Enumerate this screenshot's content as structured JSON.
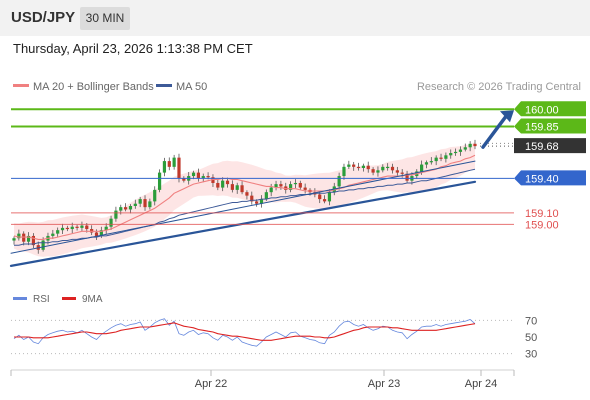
{
  "header": {
    "pair": "USD/JPY",
    "timeframe": "30 MIN"
  },
  "datetime": "Thursday, April 23, 2026 1:13:38 PM CET",
  "legend": {
    "ma20_label": "MA 20 + Bollinger Bands",
    "ma50_label": "MA 50",
    "credit": "Research © 2026 Trading Central",
    "rsi_label": "RSI",
    "ma9_label": "9MA"
  },
  "colors": {
    "ma20": "#f08080",
    "ma50": "#3d5a98",
    "bollinger_fill": "#fde0e0",
    "resistance": "#5cb818",
    "pivot": "#3366cc",
    "support": "#e05050",
    "current": "#333333",
    "candle_up": "#2a9d3a",
    "candle_down": "#c0392b",
    "arrow": "#2a5598",
    "rsi": "#6688dd",
    "rsi_ma": "#dd2222"
  },
  "chart_data": [
    {
      "type": "line",
      "chart": "price",
      "x_ticks": [
        "Apr 22",
        "Apr 23",
        "Apr 24"
      ],
      "ylim": [
        158.5,
        160.15
      ],
      "levels": [
        {
          "value": 160.0,
          "label": "160.00",
          "kind": "resistance"
        },
        {
          "value": 159.85,
          "label": "159.85",
          "kind": "resistance"
        },
        {
          "value": 159.68,
          "label": "159.68",
          "kind": "current"
        },
        {
          "value": 159.4,
          "label": "159.40",
          "kind": "pivot"
        },
        {
          "value": 159.1,
          "label": "159.10",
          "kind": "support"
        },
        {
          "value": 159.0,
          "label": "159.00",
          "kind": "support"
        }
      ],
      "trendlines": [
        {
          "name": "lower",
          "from": [
            0,
            158.64
          ],
          "to": [
            95,
            159.37
          ]
        },
        {
          "name": "upper-channel",
          "from": [
            0,
            158.75
          ],
          "to": [
            95,
            159.55
          ]
        }
      ],
      "close": [
        158.88,
        158.92,
        158.85,
        158.9,
        158.82,
        158.78,
        158.86,
        158.9,
        158.92,
        158.95,
        158.97,
        158.96,
        158.98,
        158.97,
        158.99,
        158.96,
        158.93,
        158.9,
        158.95,
        158.98,
        159.05,
        159.12,
        159.15,
        159.13,
        159.16,
        159.18,
        159.22,
        159.15,
        159.2,
        159.3,
        159.45,
        159.55,
        159.5,
        159.58,
        159.4,
        159.38,
        159.42,
        159.45,
        159.4,
        159.42,
        159.41,
        159.36,
        159.32,
        159.38,
        159.35,
        159.3,
        159.34,
        159.28,
        159.25,
        159.2,
        159.18,
        159.22,
        159.28,
        159.32,
        159.35,
        159.33,
        159.3,
        159.35,
        159.36,
        159.32,
        159.3,
        159.28,
        159.26,
        159.22,
        159.2,
        159.28,
        159.33,
        159.42,
        159.5,
        159.52,
        159.5,
        159.49,
        159.51,
        159.48,
        159.45,
        159.47,
        159.5,
        159.5,
        159.47,
        159.45,
        159.44,
        159.38,
        159.42,
        159.46,
        159.52,
        159.54,
        159.55,
        159.58,
        159.57,
        159.6,
        159.62,
        159.63,
        159.65,
        159.67,
        159.7,
        159.68
      ],
      "ma20": [
        158.9,
        158.89,
        158.89,
        158.89,
        158.88,
        158.87,
        158.87,
        158.88,
        158.88,
        158.89,
        158.9,
        158.91,
        158.92,
        158.93,
        158.94,
        158.94,
        158.94,
        158.94,
        158.94,
        158.95,
        158.96,
        158.98,
        159.0,
        159.02,
        159.04,
        159.06,
        159.08,
        159.1,
        159.12,
        159.14,
        159.17,
        159.2,
        159.23,
        159.27,
        159.29,
        159.31,
        159.33,
        159.35,
        159.36,
        159.37,
        159.38,
        159.39,
        159.39,
        159.4,
        159.4,
        159.39,
        159.39,
        159.38,
        159.37,
        159.36,
        159.35,
        159.34,
        159.33,
        159.33,
        159.32,
        159.32,
        159.31,
        159.31,
        159.31,
        159.3,
        159.29,
        159.29,
        159.29,
        159.29,
        159.29,
        159.29,
        159.3,
        159.31,
        159.32,
        159.34,
        159.35,
        159.36,
        159.37,
        159.38,
        159.39,
        159.4,
        159.41,
        159.42,
        159.42,
        159.42,
        159.42,
        159.43,
        159.43,
        159.44,
        159.45,
        159.46,
        159.47,
        159.48,
        159.5,
        159.51,
        159.53,
        159.54,
        159.55,
        159.57,
        159.58,
        159.6
      ],
      "ma50": [
        158.82,
        158.82,
        158.83,
        158.83,
        158.83,
        158.84,
        158.84,
        158.84,
        158.85,
        158.85,
        158.86,
        158.86,
        158.87,
        158.87,
        158.88,
        158.88,
        158.89,
        158.89,
        158.9,
        158.9,
        158.91,
        158.92,
        158.93,
        158.94,
        158.95,
        158.96,
        158.97,
        158.98,
        158.99,
        159.0,
        159.02,
        159.03,
        159.05,
        159.06,
        159.08,
        159.09,
        159.1,
        159.11,
        159.12,
        159.13,
        159.14,
        159.15,
        159.16,
        159.17,
        159.18,
        159.19,
        159.19,
        159.2,
        159.2,
        159.21,
        159.21,
        159.22,
        159.22,
        159.23,
        159.23,
        159.24,
        159.24,
        159.25,
        159.25,
        159.26,
        159.26,
        159.26,
        159.27,
        159.27,
        159.27,
        159.28,
        159.28,
        159.29,
        159.29,
        159.3,
        159.3,
        159.31,
        159.31,
        159.32,
        159.32,
        159.33,
        159.33,
        159.34,
        159.34,
        159.35,
        159.35,
        159.36,
        159.36,
        159.37,
        159.38,
        159.38,
        159.39,
        159.4,
        159.41,
        159.42,
        159.43,
        159.44,
        159.45,
        159.46,
        159.47,
        159.48
      ]
    },
    {
      "type": "line",
      "chart": "rsi",
      "ylim": [
        20,
        80
      ],
      "y_ticks": [
        70,
        50,
        30
      ],
      "series": [
        {
          "name": "RSI",
          "values": [
            48,
            52,
            47,
            50,
            44,
            42,
            49,
            53,
            55,
            57,
            58,
            56,
            57,
            55,
            58,
            54,
            50,
            47,
            53,
            57,
            61,
            64,
            66,
            63,
            65,
            66,
            68,
            58,
            62,
            67,
            70,
            72,
            64,
            69,
            54,
            52,
            56,
            58,
            53,
            55,
            54,
            49,
            46,
            52,
            50,
            46,
            50,
            44,
            42,
            40,
            39,
            44,
            50,
            53,
            56,
            53,
            50,
            55,
            56,
            51,
            49,
            47,
            46,
            43,
            42,
            52,
            56,
            63,
            68,
            69,
            65,
            63,
            65,
            61,
            58,
            60,
            63,
            62,
            58,
            56,
            55,
            48,
            53,
            57,
            62,
            63,
            63,
            65,
            63,
            65,
            66,
            67,
            68,
            69,
            71,
            66
          ]
        },
        {
          "name": "9MA",
          "values": [
            50,
            50,
            50,
            50,
            49,
            49,
            49,
            49,
            50,
            51,
            52,
            53,
            54,
            55,
            56,
            56,
            55,
            54,
            54,
            54,
            55,
            56,
            58,
            59,
            60,
            61,
            62,
            62,
            62,
            63,
            64,
            65,
            66,
            67,
            65,
            63,
            62,
            61,
            59,
            58,
            57,
            56,
            54,
            53,
            52,
            51,
            51,
            50,
            49,
            48,
            47,
            46,
            46,
            46,
            47,
            48,
            49,
            50,
            51,
            51,
            51,
            51,
            50,
            50,
            49,
            49,
            50,
            52,
            54,
            56,
            58,
            59,
            61,
            62,
            62,
            62,
            62,
            62,
            61,
            61,
            60,
            59,
            58,
            58,
            58,
            58,
            58,
            58,
            59,
            60,
            61,
            62,
            63,
            64,
            65,
            66
          ]
        }
      ]
    }
  ]
}
